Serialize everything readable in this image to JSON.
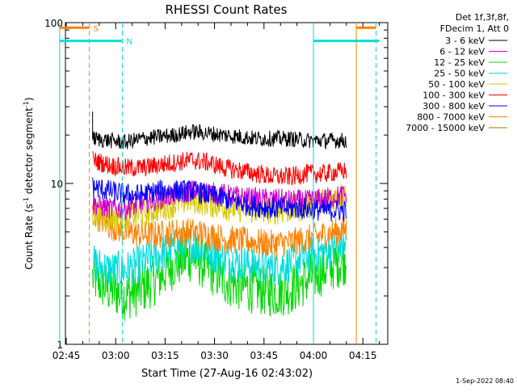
{
  "chart_data": {
    "type": "line",
    "title": "RHESSI Count Rates",
    "xlabel": "Start Time (27-Aug-16 02:43:02)",
    "ylabel": "Count Rate (s^-1 detector segment^-1)",
    "ylabel_parts": {
      "a": "Count Rate (s",
      "b": "-1",
      "c": " detector segment",
      "d": "-1",
      "e": ")"
    },
    "yscale": "log",
    "ylim": [
      1,
      100
    ],
    "xlim_minutes": [
      0,
      100
    ],
    "x_ticks": [
      {
        "label": "02:45",
        "minute": 2
      },
      {
        "label": "03:00",
        "minute": 17
      },
      {
        "label": "03:15",
        "minute": 32
      },
      {
        "label": "03:30",
        "minute": 47
      },
      {
        "label": "03:45",
        "minute": 62
      },
      {
        "label": "04:00",
        "minute": 77
      },
      {
        "label": "04:15",
        "minute": 92
      }
    ],
    "y_ticks": [
      {
        "label": "1",
        "value": 1
      },
      {
        "label": "10",
        "value": 10
      },
      {
        "label": "100",
        "value": 100
      }
    ],
    "legend_header": [
      "Det 1f,3f,8f,",
      "FDecim 1, Att 0"
    ],
    "series": [
      {
        "name": "3 - 6 keV",
        "color": "#000000",
        "x": [
          10,
          15,
          20,
          25,
          30,
          35,
          40,
          45,
          50,
          55,
          60,
          65,
          70,
          75,
          80,
          87
        ],
        "values": [
          19,
          18.5,
          18,
          19,
          19.5,
          20,
          21,
          20.5,
          20,
          19.5,
          19,
          19,
          19,
          18.5,
          18.5,
          18.5
        ]
      },
      {
        "name": "6 - 12 keV",
        "color": "#d000d0",
        "x": [
          10,
          15,
          20,
          25,
          30,
          35,
          40,
          45,
          50,
          55,
          60,
          65,
          70,
          75,
          80,
          87
        ],
        "values": [
          7.5,
          7,
          7,
          7.5,
          8,
          8.5,
          9,
          8.8,
          8.5,
          8.2,
          8,
          8,
          7.8,
          7.8,
          8,
          8.5
        ]
      },
      {
        "name": "12 - 25 keV",
        "color": "#00d800",
        "x": [
          10,
          15,
          20,
          25,
          30,
          35,
          40,
          45,
          50,
          55,
          60,
          65,
          70,
          75,
          80,
          87
        ],
        "values": [
          2.6,
          2.2,
          2.0,
          2.2,
          2.6,
          3.2,
          3.5,
          3.0,
          2.5,
          2.3,
          2.2,
          2.1,
          2.2,
          2.5,
          2.9,
          3.4
        ]
      },
      {
        "name": "25 - 50 keV",
        "color": "#00dddd",
        "x": [
          10,
          15,
          20,
          25,
          30,
          35,
          40,
          45,
          50,
          55,
          60,
          65,
          70,
          75,
          80,
          87
        ],
        "values": [
          3.2,
          2.9,
          2.9,
          3.2,
          3.6,
          4.0,
          4.2,
          3.8,
          3.4,
          3.2,
          3.1,
          3.0,
          3.2,
          3.5,
          3.8,
          4.2
        ]
      },
      {
        "name": "50 - 100 keV",
        "color": "#d8c800",
        "x": [
          10,
          15,
          20,
          25,
          30,
          35,
          40,
          45,
          50,
          55,
          60,
          65,
          70,
          75,
          80,
          87
        ],
        "values": [
          6.5,
          6.2,
          6.2,
          6.5,
          7.0,
          7.5,
          8.0,
          7.6,
          7.2,
          7.0,
          6.8,
          6.8,
          6.9,
          7.2,
          7.8,
          8.5
        ]
      },
      {
        "name": "100 - 300 keV",
        "color": "#ff0000",
        "x": [
          10,
          15,
          20,
          25,
          30,
          35,
          40,
          45,
          50,
          55,
          60,
          65,
          70,
          75,
          80,
          87
        ],
        "values": [
          14,
          13,
          12.5,
          12.5,
          13,
          13.5,
          14,
          13.5,
          12.5,
          12,
          11.5,
          11,
          11,
          11.5,
          11.5,
          12
        ]
      },
      {
        "name": "300 - 800 keV",
        "color": "#0000ff",
        "x": [
          10,
          15,
          20,
          25,
          30,
          35,
          40,
          45,
          50,
          55,
          60,
          65,
          70,
          75,
          80,
          87
        ],
        "values": [
          9.5,
          9,
          8.5,
          8.5,
          9,
          9,
          9,
          8.5,
          8,
          7.5,
          7.2,
          7,
          7,
          7,
          6.8,
          6.8
        ]
      },
      {
        "name": "800 - 7000 keV",
        "color": "#ff8000",
        "x": [
          10,
          15,
          20,
          25,
          30,
          35,
          40,
          45,
          50,
          55,
          60,
          65,
          70,
          75,
          80,
          87
        ],
        "values": [
          6.5,
          5.5,
          5.0,
          4.8,
          4.8,
          5.0,
          5.0,
          4.8,
          4.5,
          4.4,
          4.3,
          4.2,
          4.3,
          4.5,
          4.8,
          5.2
        ]
      },
      {
        "name": "7000 - 15000 keV",
        "color": "#808000",
        "x": [],
        "values": []
      }
    ],
    "attenuator_bars": [
      {
        "label": "S",
        "color": "#ff8000",
        "minute_start": 0,
        "minute_end": 9,
        "value": 93
      },
      {
        "label": "N",
        "color": "#00dddd",
        "minute_start": 0,
        "minute_end": 19,
        "value": 77
      }
    ],
    "end_bars": [
      {
        "color": "#00dddd",
        "minute_start": 77,
        "minute_end": 97,
        "value": 77
      },
      {
        "color": "#ff8000",
        "minute_start": 90,
        "minute_end": 96,
        "value": 93
      }
    ],
    "vlines": [
      {
        "minute": 0,
        "color": "#00dddd",
        "style": "solid"
      },
      {
        "minute": 9,
        "color": "#ff8000",
        "style": "dashed"
      },
      {
        "minute": 19,
        "color": "#00dddd",
        "style": "dashed"
      },
      {
        "minute": 77,
        "color": "#00dddd",
        "style": "solid"
      },
      {
        "minute": 90,
        "color": "#ff8000",
        "style": "solid"
      },
      {
        "minute": 96,
        "color": "#00dddd",
        "style": "dashed"
      }
    ],
    "footer_timestamp": "1-Sep-2022 08:40"
  }
}
